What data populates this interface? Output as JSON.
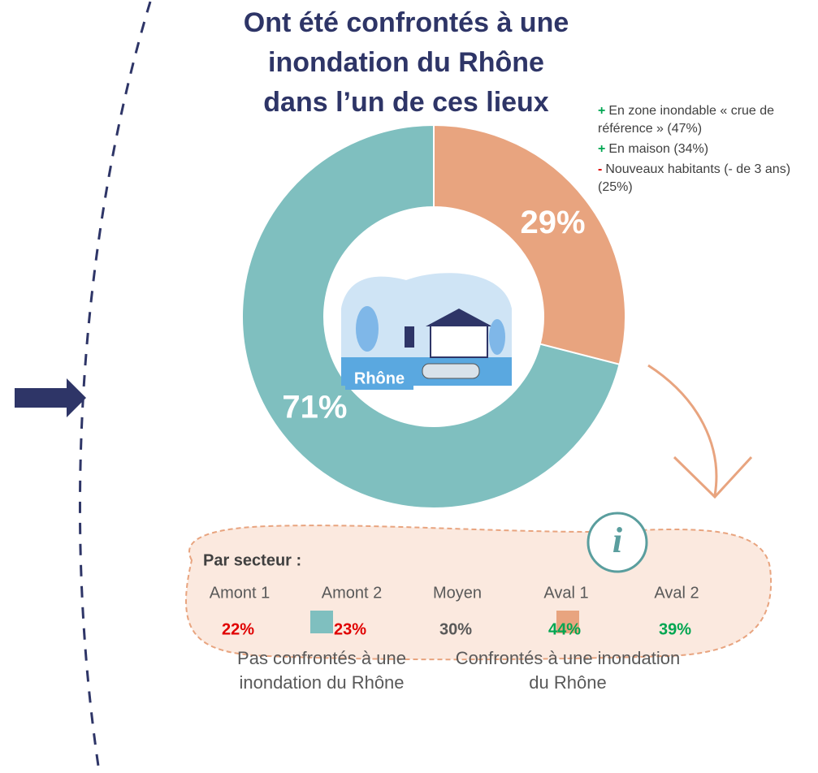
{
  "chart_data": {
    "type": "pie",
    "donut": true,
    "title": [
      "Ont été confrontés à une",
      "inondation du Rhône",
      "dans l’un de ces lieux"
    ],
    "categories": [
      "Pas confrontés à une inondation du Rhône",
      "Confrontés à une inondation du Rhône"
    ],
    "values": [
      71,
      29
    ],
    "value_labels": [
      "71%",
      "29%"
    ],
    "colors": [
      "#7fbfbf",
      "#e8a47f"
    ],
    "center_label": "Rhône"
  },
  "notes": [
    {
      "marker": "+",
      "color": "#00a651",
      "text": "En zone inondable « crue de référence » (47%)"
    },
    {
      "marker": "+",
      "color": "#00a651",
      "text": "En maison (34%)"
    },
    {
      "marker": "-",
      "color": "#e00000",
      "text": "Nouveaux habitants (- de 3 ans) (25%)"
    }
  ],
  "sectors": {
    "title": "Par secteur :",
    "names": [
      "Amont 1",
      "Amont 2",
      "Moyen",
      "Aval 1",
      "Aval 2"
    ],
    "values": [
      22,
      23,
      30,
      44,
      39
    ],
    "value_labels": [
      "22%",
      "23%",
      "30%",
      "44%",
      "39%"
    ],
    "colors": [
      "#e00000",
      "#e00000",
      "#595959",
      "#00a651",
      "#00a651"
    ]
  }
}
